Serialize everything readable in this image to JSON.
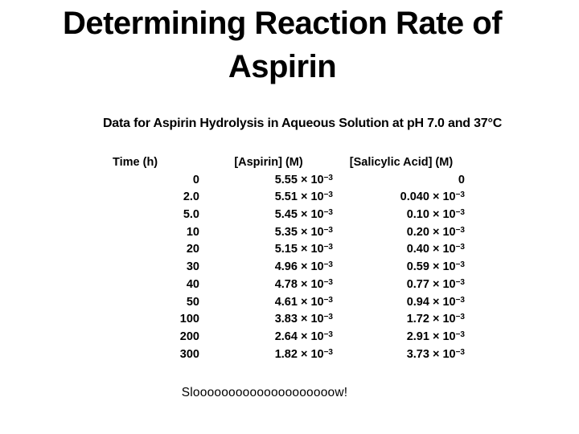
{
  "slide": {
    "title_line1": "Determining Reaction Rate of",
    "title_line2": "Aspirin",
    "subtitle": "Data for Aspirin Hydrolysis in Aqueous Solution at pH 7.0 and 37°C",
    "footer_note": "Sloooooooooooooooooooow!",
    "background_color": "#ffffff",
    "text_color": "#000000"
  },
  "table": {
    "columns": [
      "Time (h)",
      "[Aspirin] (M)",
      "[Salicylic Acid] (M)"
    ],
    "rows": [
      {
        "time": "0",
        "aspirin": {
          "base": "5.55 × 10",
          "sup": "−3"
        },
        "salicylic": {
          "base": "0",
          "sup": ""
        }
      },
      {
        "time": "2.0",
        "aspirin": {
          "base": "5.51 × 10",
          "sup": "−3"
        },
        "salicylic": {
          "base": "0.040 × 10",
          "sup": "−3"
        }
      },
      {
        "time": "5.0",
        "aspirin": {
          "base": "5.45 × 10",
          "sup": "−3"
        },
        "salicylic": {
          "base": "0.10 × 10",
          "sup": "−3"
        }
      },
      {
        "time": "10",
        "aspirin": {
          "base": "5.35 × 10",
          "sup": "−3"
        },
        "salicylic": {
          "base": "0.20 × 10",
          "sup": "−3"
        }
      },
      {
        "time": "20",
        "aspirin": {
          "base": "5.15 × 10",
          "sup": "−3"
        },
        "salicylic": {
          "base": "0.40 × 10",
          "sup": "−3"
        }
      },
      {
        "time": "30",
        "aspirin": {
          "base": "4.96 × 10",
          "sup": "−3"
        },
        "salicylic": {
          "base": "0.59 × 10",
          "sup": "−3"
        }
      },
      {
        "time": "40",
        "aspirin": {
          "base": "4.78 × 10",
          "sup": "−3"
        },
        "salicylic": {
          "base": "0.77 × 10",
          "sup": "−3"
        }
      },
      {
        "time": "50",
        "aspirin": {
          "base": "4.61 × 10",
          "sup": "−3"
        },
        "salicylic": {
          "base": "0.94 × 10",
          "sup": "−3"
        }
      },
      {
        "time": "100",
        "aspirin": {
          "base": "3.83 × 10",
          "sup": "−3"
        },
        "salicylic": {
          "base": "1.72 × 10",
          "sup": "−3"
        }
      },
      {
        "time": "200",
        "aspirin": {
          "base": "2.64 × 10",
          "sup": "−3"
        },
        "salicylic": {
          "base": "2.91 × 10",
          "sup": "−3"
        }
      },
      {
        "time": "300",
        "aspirin": {
          "base": "1.82 × 10",
          "sup": "−3"
        },
        "salicylic": {
          "base": "3.73 × 10",
          "sup": "−3"
        }
      }
    ]
  }
}
